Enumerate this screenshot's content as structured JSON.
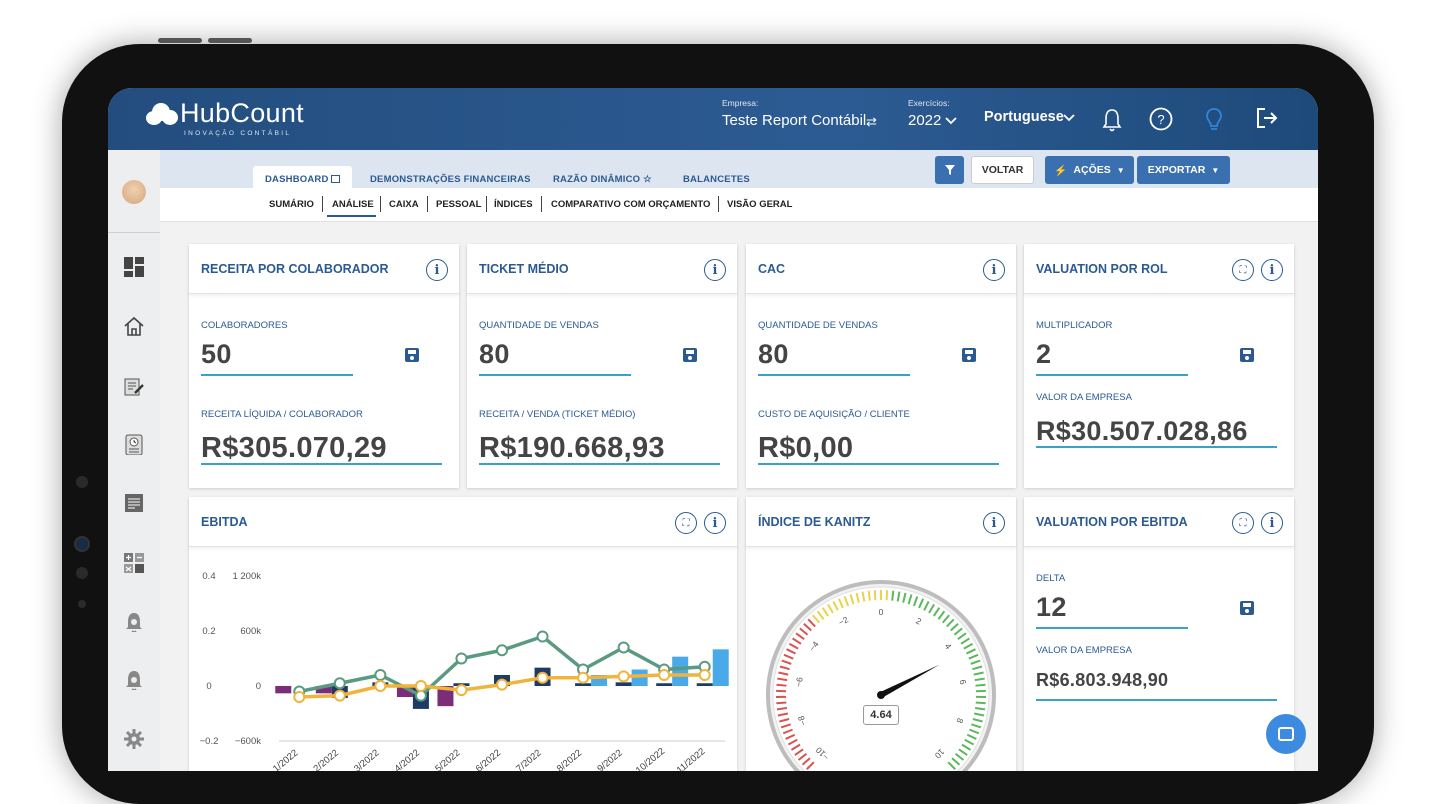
{
  "app": {
    "logo_text": "HubCount",
    "logo_subtitle": "INOVAÇÃO CONTÁBIL"
  },
  "topbar": {
    "empresa_label": "Empresa:",
    "empresa_value": "Teste Report Contábil",
    "exercicios_label": "Exercícios:",
    "exercicios_value": "2022",
    "language": "Portuguese"
  },
  "tabs": [
    {
      "label": "DASHBOARD",
      "active": true
    },
    {
      "label": "DEMONSTRAÇÕES FINANCEIRAS"
    },
    {
      "label": "RAZÃO DINÂMICO ☆"
    },
    {
      "label": "BALANCETES"
    }
  ],
  "subtabs": [
    "SUMÁRIO",
    "ANÁLISE",
    "CAIXA",
    "PESSOAL",
    "ÍNDICES",
    "COMPARATIVO COM ORÇAMENTO",
    "VISÃO GERAL"
  ],
  "subtab_active": "ANÁLISE",
  "buttons": {
    "voltar": "VOLTAR",
    "acoes": "AÇÕES",
    "exportar": "EXPORTAR"
  },
  "cards": {
    "receita": {
      "title": "RECEITA POR COLABORADOR",
      "label1": "COLABORADORES",
      "value1": "50",
      "label2": "RECEITA LÍQUIDA / COLABORADOR",
      "value2": "R$305.070,29"
    },
    "ticket": {
      "title": "TICKET MÉDIO",
      "label1": "QUANTIDADE DE VENDAS",
      "value1": "80",
      "label2": "RECEITA / VENDA (TICKET MÉDIO)",
      "value2": "R$190.668,93"
    },
    "cac": {
      "title": "CAC",
      "label1": "QUANTIDADE DE VENDAS",
      "value1": "80",
      "label2": "CUSTO DE AQUISIÇÃO / CLIENTE",
      "value2": "R$0,00"
    },
    "valuation_rol": {
      "title": "VALUATION POR ROL",
      "label1": "MULTIPLICADOR",
      "value1": "2",
      "label2": "VALOR DA EMPRESA",
      "value2": "R$30.507.028,86"
    },
    "ebitda": {
      "title": "EBITDA"
    },
    "kanitz": {
      "title": "ÍNDICE DE KANITZ",
      "value": "4.64"
    },
    "valuation_ebitda": {
      "title": "VALUATION POR EBITDA",
      "label1": "DELTA",
      "value1": "12",
      "label2": "VALOR DA EMPRESA",
      "value2": "R$6.803.948,90"
    }
  },
  "chart_data": [
    {
      "type": "bar",
      "title": "EBITDA",
      "categories": [
        "1/2022",
        "2/2022",
        "3/2022",
        "4/2022",
        "5/2022",
        "6/2022",
        "7/2022",
        "8/2022",
        "9/2022",
        "10/2022",
        "11/2022"
      ],
      "y_left_ticks": [
        "0.4",
        "0.2",
        "0",
        "−0.2"
      ],
      "y_right_ticks": [
        "1 200k",
        "600k",
        "0",
        "−600k"
      ],
      "ylim_left": [
        -0.2,
        0.4
      ],
      "ylim_right": [
        -600000,
        1200000
      ],
      "series": [
        {
          "type": "bar",
          "color": "#7b2d7a",
          "values": [
            -80000,
            -80000,
            0,
            -120000,
            -220000,
            0,
            0,
            0,
            0,
            0,
            0
          ]
        },
        {
          "type": "bar",
          "color": "#1e3a66",
          "values": [
            0,
            -130000,
            40000,
            -250000,
            30000,
            120000,
            200000,
            30000,
            40000,
            30000,
            30000
          ]
        },
        {
          "type": "bar",
          "color": "#4aa9e8",
          "values": [
            0,
            0,
            0,
            0,
            0,
            0,
            0,
            120000,
            180000,
            320000,
            400000
          ]
        },
        {
          "type": "line",
          "color": "#5a9a80",
          "values": [
            -0.02,
            0.01,
            0.04,
            -0.035,
            0.1,
            0.13,
            0.18,
            0.06,
            0.14,
            0.06,
            0.07
          ]
        },
        {
          "type": "line",
          "color": "#f0b43c",
          "values": [
            -0.04,
            -0.035,
            0.0,
            0.0,
            -0.015,
            0.005,
            0.03,
            0.03,
            0.035,
            0.04,
            0.04
          ]
        }
      ]
    },
    {
      "type": "gauge",
      "title": "ÍNDICE DE KANITZ",
      "value": 4.64,
      "range": [
        -10,
        10
      ],
      "tick_labels": [
        "0",
        "2",
        "4",
        "6",
        "8",
        "10",
        "−2",
        "−4",
        "−6",
        "−8",
        "−10"
      ]
    }
  ]
}
